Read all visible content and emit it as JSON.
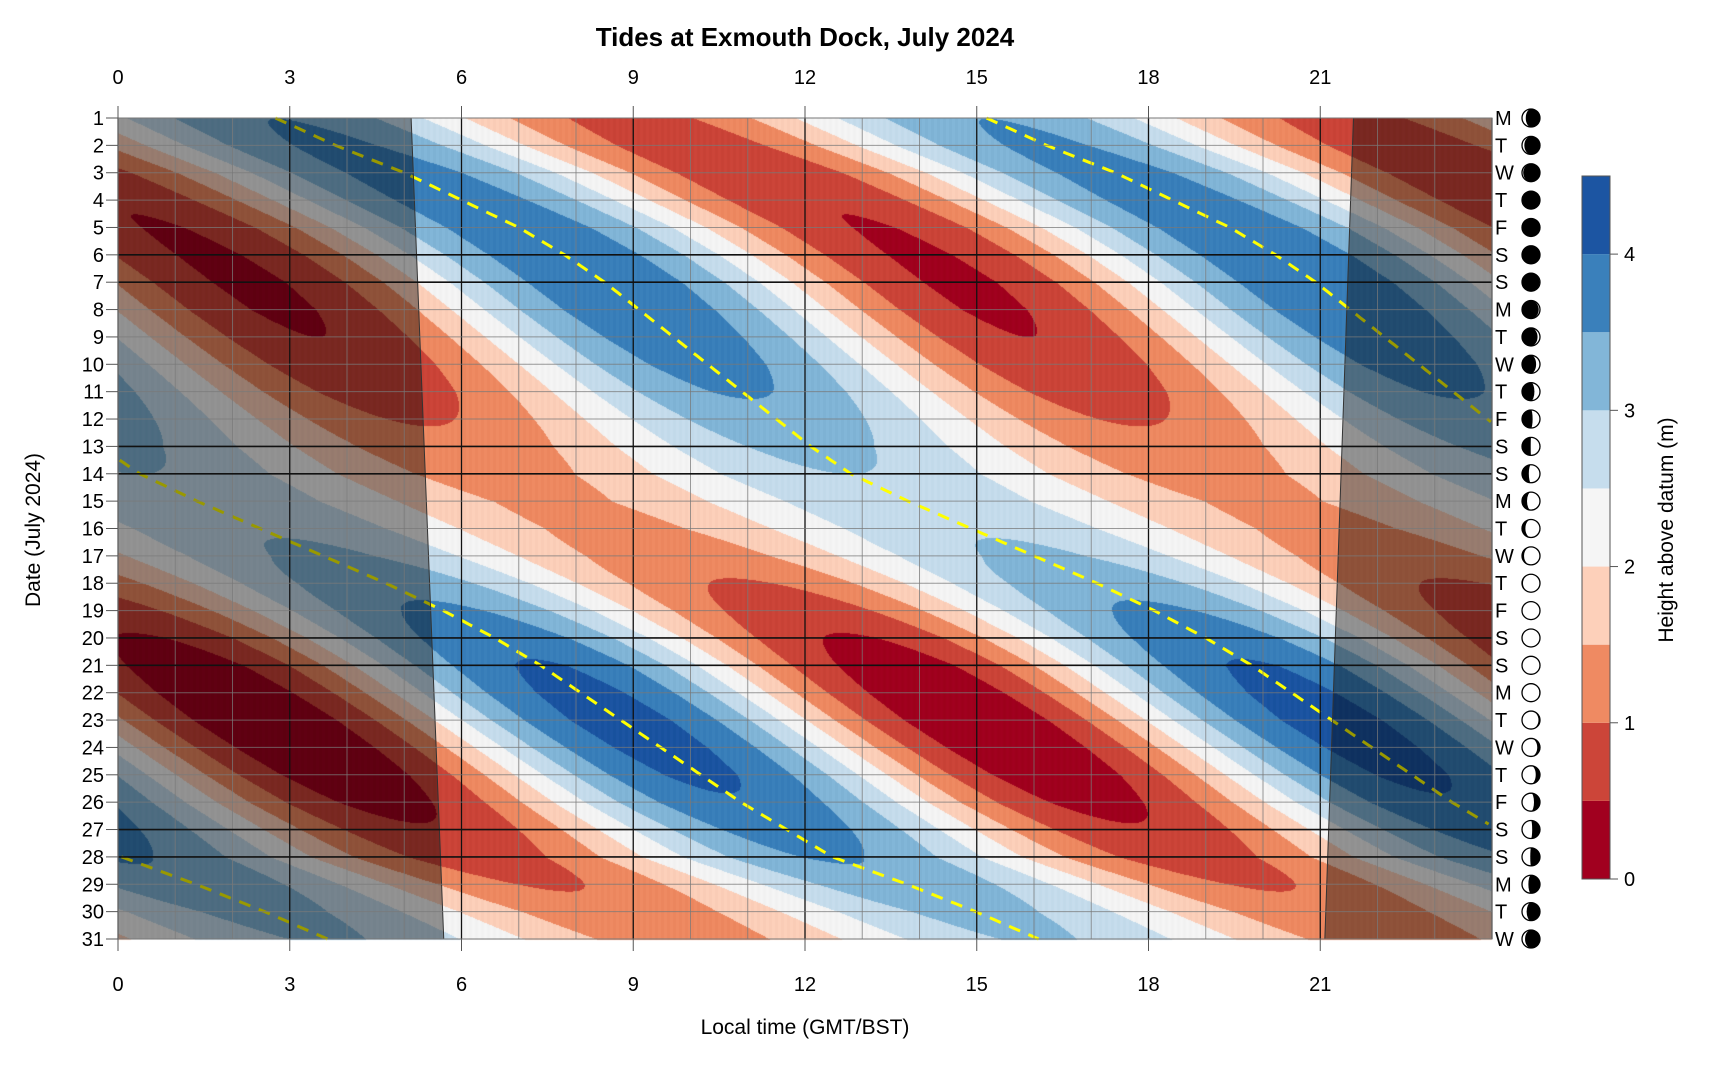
{
  "chart_data": {
    "type": "heatmap",
    "title": "Tides at Exmouth Dock, July 2024",
    "xlabel": "Local time (GMT/BST)",
    "ylabel": "Date (July 2024)",
    "colorbar_label": "Height above datum (m)",
    "xlim": [
      0,
      24
    ],
    "x_ticks": [
      0,
      3,
      6,
      9,
      12,
      15,
      18,
      21
    ],
    "x_tick_labels": [
      "0",
      "3",
      "6",
      "9",
      "12",
      "15",
      "18",
      "21"
    ],
    "days": [
      1,
      2,
      3,
      4,
      5,
      6,
      7,
      8,
      9,
      10,
      11,
      12,
      13,
      14,
      15,
      16,
      17,
      18,
      19,
      20,
      21,
      22,
      23,
      24,
      25,
      26,
      27,
      28,
      29,
      30,
      31
    ],
    "day_labels": [
      "1",
      "2",
      "3",
      "4",
      "5",
      "6",
      "7",
      "8",
      "9",
      "10",
      "11",
      "12",
      "13",
      "14",
      "15",
      "16",
      "17",
      "18",
      "19",
      "20",
      "21",
      "22",
      "23",
      "24",
      "25",
      "26",
      "27",
      "28",
      "29",
      "30",
      "31"
    ],
    "weekdays": [
      "M",
      "T",
      "W",
      "T",
      "F",
      "S",
      "S",
      "M",
      "T",
      "W",
      "T",
      "F",
      "S",
      "S",
      "M",
      "T",
      "W",
      "T",
      "F",
      "S",
      "S",
      "M",
      "T",
      "W",
      "T",
      "F",
      "S",
      "S",
      "M",
      "T",
      "W"
    ],
    "weekend_days": [
      6,
      7,
      13,
      14,
      20,
      21,
      27,
      28
    ],
    "moon_phase": [
      0.849,
      0.883,
      0.917,
      0.951,
      0.984,
      0.018,
      0.052,
      0.086,
      0.12,
      0.154,
      0.188,
      0.221,
      0.255,
      0.289,
      0.323,
      0.357,
      0.391,
      0.425,
      0.459,
      0.492,
      0.526,
      0.56,
      0.594,
      0.628,
      0.662,
      0.696,
      0.729,
      0.763,
      0.797,
      0.831,
      0.865
    ],
    "tide_period_hours": 12.42,
    "mean_level_m": 2.15,
    "high_water_hour": [
      2.75,
      3.8,
      5.0,
      6.0,
      7.0,
      7.8,
      8.5,
      9.1,
      9.7,
      10.3,
      10.9,
      11.5,
      12.1,
      12.8,
      13.8,
      14.9,
      16.0,
      17.1,
      18.1,
      19.0,
      19.8,
      20.5,
      21.2,
      21.9,
      22.6,
      23.3,
      24.1,
      24.9,
      26.2,
      27.4,
      28.5
    ],
    "tidal_amplitude_m": [
      1.35,
      1.45,
      1.55,
      1.62,
      1.68,
      1.72,
      1.74,
      1.72,
      1.65,
      1.55,
      1.4,
      1.2,
      1.0,
      0.85,
      0.75,
      0.8,
      0.95,
      1.2,
      1.45,
      1.7,
      1.9,
      2.0,
      2.05,
      2.02,
      1.95,
      1.8,
      1.6,
      1.4,
      1.2,
      1.0,
      0.9
    ],
    "sunrise_hour": {
      "day1": 5.12,
      "day31": 5.69
    },
    "sunset_hour": {
      "day1": 21.58,
      "day31": 21.08
    },
    "levels_m": [
      0,
      0.5,
      1,
      1.5,
      2,
      2.5,
      3,
      3.5,
      4,
      4.5
    ],
    "colorbar_ticks": [
      0,
      1,
      2,
      3,
      4
    ],
    "colorbar_tick_labels": [
      "0",
      "1",
      "2",
      "3",
      "4"
    ],
    "colors": [
      "#a1001f",
      "#cc4539",
      "#ef8a62",
      "#fdd0ba",
      "#f5f5f5",
      "#c6dded",
      "#82b6d8",
      "#3a80bb",
      "#1c55a2"
    ],
    "high_water_line_color": "#ffff00",
    "night_shade": "rgba(0,0,0,0.4)"
  }
}
